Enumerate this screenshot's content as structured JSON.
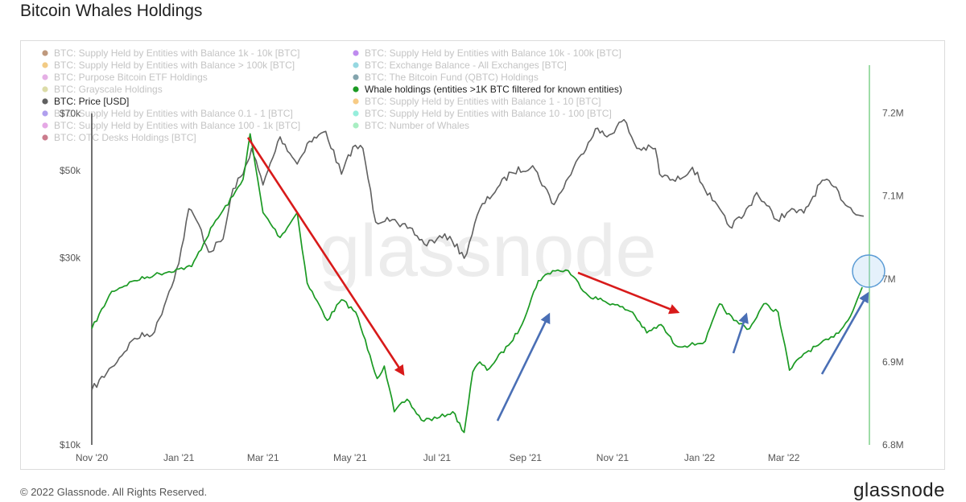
{
  "title": "Bitcoin Whales Holdings",
  "footer": "© 2022 Glassnode. All Rights Reserved.",
  "brand": "glassnode",
  "watermark": "glassnode",
  "colors": {
    "price": "#606060",
    "whales": "#1b9a23",
    "red_arrow": "#d81a1a",
    "blue_arrow": "#4a6fb5",
    "circle": "#5a9bd5",
    "right_axis_line": "#7fd08a"
  },
  "legend": [
    {
      "label": "BTC: Supply Held by Entities with Balance 1k - 10k [BTC]",
      "color": "#8b4513",
      "active": false
    },
    {
      "label": "BTC: Supply Held by Entities with Balance 10k - 100k [BTC]",
      "color": "#8a2be2",
      "active": false
    },
    {
      "label": "BTC: Supply Held by Entities with Balance > 100k [BTC]",
      "color": "#e8a020",
      "active": false
    },
    {
      "label": "BTC: Exchange Balance - All Exchanges [BTC]",
      "color": "#3fb8c8",
      "active": false
    },
    {
      "label": "BTC: Purpose Bitcoin ETF Holdings",
      "color": "#d070d0",
      "active": false
    },
    {
      "label": "BTC: The Bitcoin Fund (QBTC) Holdings",
      "color": "#1e5a6a",
      "active": false
    },
    {
      "label": "BTC: Grayscale Holdings",
      "color": "#c0c060",
      "active": false
    },
    {
      "label": "Whale holdings (entities >1K BTC filtered for known entities)",
      "color": "#1b9a23",
      "active": true
    },
    {
      "label": "BTC: Price [USD]",
      "color": "#606060",
      "active": true
    },
    {
      "label": "BTC: Supply Held by Entities with Balance 1 - 10 [BTC]",
      "color": "#f0a020",
      "active": false
    },
    {
      "label": "BTC: Supply Held by Entities with Balance 0.1 - 1 [BTC]",
      "color": "#7050e0",
      "active": false
    },
    {
      "label": "BTC: Supply Held by Entities with Balance 10 - 100 [BTC]",
      "color": "#40e0c0",
      "active": false
    },
    {
      "label": "BTC: Supply Held by Entities with Balance 100 - 1k [BTC]",
      "color": "#d060d0",
      "active": false
    },
    {
      "label": "BTC: Number of Whales",
      "color": "#60e090",
      "active": false
    },
    {
      "label": "BTC: OTC Desks Holdings [BTC]",
      "color": "#a01030",
      "active": false
    }
  ],
  "chart_data": {
    "type": "line",
    "title": "Bitcoin Whales Holdings",
    "x_ticks": [
      "Nov '20",
      "Jan '21",
      "Mar '21",
      "May '21",
      "Jul '21",
      "Sep '21",
      "Nov '21",
      "Jan '22",
      "Mar '22"
    ],
    "x_range": [
      "2020-11-01",
      "2022-04-30"
    ],
    "y_left": {
      "label": "",
      "ticks": [
        "$10k",
        "$30k",
        "$50k",
        "$70k"
      ],
      "range": [
        10000,
        70000
      ],
      "scale": "log"
    },
    "y_right": {
      "label": "",
      "ticks": [
        "6.8M",
        "6.9M",
        "7M",
        "7.1M",
        "7.2M"
      ],
      "range": [
        6800000,
        7250000
      ],
      "scale": "linear"
    },
    "grid": false,
    "legend_position": "top-left",
    "series": [
      {
        "name": "BTC: Price [USD]",
        "axis": "left",
        "x": [
          "2020-11-01",
          "2020-11-15",
          "2020-12-01",
          "2020-12-15",
          "2021-01-01",
          "2021-01-08",
          "2021-01-15",
          "2021-01-22",
          "2021-02-01",
          "2021-02-08",
          "2021-02-15",
          "2021-02-21",
          "2021-03-01",
          "2021-03-13",
          "2021-03-25",
          "2021-04-01",
          "2021-04-14",
          "2021-04-25",
          "2021-05-03",
          "2021-05-10",
          "2021-05-19",
          "2021-05-27",
          "2021-06-05",
          "2021-06-12",
          "2021-06-22",
          "2021-07-01",
          "2021-07-10",
          "2021-07-20",
          "2021-07-31",
          "2021-08-14",
          "2021-08-22",
          "2021-09-06",
          "2021-09-21",
          "2021-10-01",
          "2021-10-10",
          "2021-10-20",
          "2021-10-28",
          "2021-11-09",
          "2021-11-18",
          "2021-12-01",
          "2021-12-04",
          "2021-12-15",
          "2021-12-27",
          "2022-01-10",
          "2022-01-22",
          "2022-02-01",
          "2022-02-10",
          "2022-02-24",
          "2022-03-05",
          "2022-03-15",
          "2022-03-28",
          "2022-04-05",
          "2022-04-15",
          "2022-04-26"
        ],
        "values": [
          13800,
          15800,
          18700,
          19400,
          29000,
          40000,
          36500,
          31000,
          33500,
          45000,
          49000,
          57000,
          46000,
          61000,
          52000,
          58700,
          63000,
          49000,
          57500,
          57000,
          37000,
          38000,
          36000,
          35800,
          32500,
          33500,
          34000,
          29900,
          40000,
          46000,
          49500,
          51500,
          41000,
          48000,
          55000,
          64000,
          61000,
          67500,
          57000,
          57000,
          49000,
          47000,
          51000,
          42000,
          36000,
          38500,
          44000,
          37500,
          39500,
          39000,
          47300,
          45500,
          40500,
          38300
        ]
      },
      {
        "name": "Whale holdings (entities >1K BTC filtered for known entities)",
        "axis": "right",
        "x": [
          "2020-11-01",
          "2020-11-15",
          "2020-12-01",
          "2020-12-15",
          "2021-01-01",
          "2021-01-10",
          "2021-01-25",
          "2021-02-08",
          "2021-02-15",
          "2021-02-20",
          "2021-03-01",
          "2021-03-13",
          "2021-03-25",
          "2021-04-01",
          "2021-04-15",
          "2021-04-25",
          "2021-05-05",
          "2021-05-15",
          "2021-05-20",
          "2021-05-25",
          "2021-06-01",
          "2021-06-10",
          "2021-06-20",
          "2021-07-01",
          "2021-07-12",
          "2021-07-20",
          "2021-07-26",
          "2021-07-31",
          "2021-08-05",
          "2021-08-20",
          "2021-08-28",
          "2021-09-10",
          "2021-09-20",
          "2021-10-01",
          "2021-10-15",
          "2021-11-01",
          "2021-11-15",
          "2021-11-25",
          "2021-12-05",
          "2021-12-15",
          "2021-12-25",
          "2022-01-05",
          "2022-01-15",
          "2022-01-25",
          "2022-02-05",
          "2022-02-15",
          "2022-02-25",
          "2022-03-05",
          "2022-03-15",
          "2022-03-25",
          "2022-04-05",
          "2022-04-15",
          "2022-04-25"
        ],
        "values": [
          6940,
          6985,
          6998,
          7005,
          7012,
          7015,
          7065,
          7100,
          7120,
          7175,
          7080,
          7050,
          7080,
          6995,
          6950,
          6975,
          6960,
          6908,
          6880,
          6895,
          6840,
          6855,
          6830,
          6832,
          6840,
          6815,
          6888,
          6900,
          6890,
          6920,
          6940,
          6998,
          7010,
          7010,
          6980,
          6970,
          6960,
          6935,
          6945,
          6920,
          6920,
          6925,
          6970,
          6950,
          6940,
          6970,
          6960,
          6890,
          6910,
          6920,
          6930,
          6950,
          6990
        ]
      }
    ]
  }
}
